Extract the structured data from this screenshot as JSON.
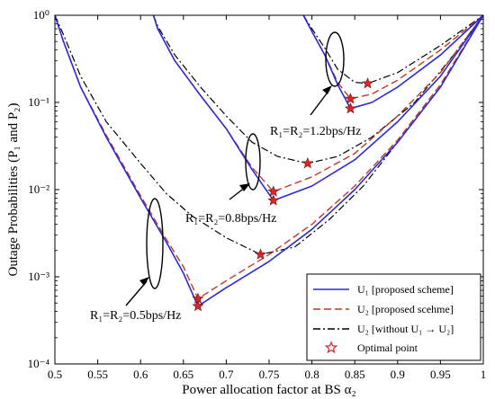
{
  "chart_data": {
    "type": "line",
    "xlabel": "Power allocation factor at BS α₂",
    "ylabel": "Outage Probabilities (P₁ and P₂)",
    "xlim": [
      0.5,
      1.0
    ],
    "ylim": [
      0.0001,
      1
    ],
    "yscale": "log",
    "xticks": [
      0.5,
      0.55,
      0.6,
      0.65,
      0.7,
      0.75,
      0.8,
      0.85,
      0.9,
      0.95,
      1.0
    ],
    "xtick_labels": [
      "0.5",
      "0.55",
      "0.6",
      "0.65",
      "0.7",
      "0.75",
      "0.8",
      "0.85",
      "0.9",
      "0.95",
      "1"
    ],
    "yticks": [
      0.0001,
      0.001,
      0.01,
      0.1,
      1
    ],
    "ytick_labels": [
      "10⁻⁴",
      "10⁻³",
      "10⁻²",
      "10⁻¹",
      "10⁰"
    ],
    "legend_position": "bottom-right",
    "legend": [
      {
        "label": "U₁ [proposed scheme]",
        "color": "#2b2bd6",
        "style": "solid"
      },
      {
        "label": "U₂ [proposed scehme]",
        "color": "#c0392b",
        "style": "dashed"
      },
      {
        "label": "U₂ [without U₁ → U₂]",
        "color": "#000000",
        "style": "dashdot"
      },
      {
        "label": "Optimal point",
        "color": "#d62728",
        "style": "star"
      }
    ],
    "annotations": [
      {
        "text": "R₁=R₂=0.5bps/Hz"
      },
      {
        "text": "R₁=R₂=0.8bps/Hz"
      },
      {
        "text": "R₁=R₂=1.2bps/Hz"
      }
    ],
    "groups": [
      {
        "rate": "0.5",
        "u1": [
          [
            0.5,
            1.0
          ],
          [
            0.51,
            0.5
          ],
          [
            0.53,
            0.15
          ],
          [
            0.56,
            0.04
          ],
          [
            0.6,
            0.008
          ],
          [
            0.63,
            0.0025
          ],
          [
            0.65,
            0.0011
          ],
          [
            0.667,
            0.00046
          ],
          [
            0.7,
            0.00075
          ],
          [
            0.75,
            0.0015
          ],
          [
            0.8,
            0.0035
          ],
          [
            0.85,
            0.01
          ],
          [
            0.9,
            0.035
          ],
          [
            0.95,
            0.15
          ],
          [
            1.0,
            1.0
          ]
        ],
        "u2": [
          [
            0.5,
            1.0
          ],
          [
            0.51,
            0.5
          ],
          [
            0.53,
            0.15
          ],
          [
            0.56,
            0.042
          ],
          [
            0.6,
            0.0085
          ],
          [
            0.63,
            0.0027
          ],
          [
            0.65,
            0.0013
          ],
          [
            0.667,
            0.00056
          ],
          [
            0.7,
            0.0009
          ],
          [
            0.75,
            0.0018
          ],
          [
            0.8,
            0.004
          ],
          [
            0.85,
            0.011
          ],
          [
            0.9,
            0.037
          ],
          [
            0.95,
            0.16
          ],
          [
            1.0,
            1.0
          ]
        ],
        "u2_without": [
          [
            0.5,
            1.0
          ],
          [
            0.51,
            0.6
          ],
          [
            0.53,
            0.2
          ],
          [
            0.56,
            0.06
          ],
          [
            0.6,
            0.02
          ],
          [
            0.63,
            0.009
          ],
          [
            0.66,
            0.005
          ],
          [
            0.7,
            0.0028
          ],
          [
            0.74,
            0.0018
          ],
          [
            0.78,
            0.0022
          ],
          [
            0.82,
            0.0045
          ],
          [
            0.86,
            0.011
          ],
          [
            0.9,
            0.035
          ],
          [
            0.95,
            0.15
          ],
          [
            1.0,
            1.0
          ]
        ],
        "optimal": [
          [
            0.667,
            0.00046
          ],
          [
            0.667,
            0.00056
          ],
          [
            0.74,
            0.0018
          ]
        ]
      },
      {
        "rate": "0.8",
        "u1": [
          [
            0.615,
            1.0
          ],
          [
            0.62,
            0.7
          ],
          [
            0.64,
            0.3
          ],
          [
            0.67,
            0.12
          ],
          [
            0.7,
            0.05
          ],
          [
            0.73,
            0.017
          ],
          [
            0.755,
            0.0075
          ],
          [
            0.8,
            0.011
          ],
          [
            0.85,
            0.022
          ],
          [
            0.9,
            0.06
          ],
          [
            0.95,
            0.2
          ],
          [
            1.0,
            1.0
          ]
        ],
        "u2": [
          [
            0.615,
            1.0
          ],
          [
            0.62,
            0.7
          ],
          [
            0.64,
            0.3
          ],
          [
            0.67,
            0.12
          ],
          [
            0.7,
            0.05
          ],
          [
            0.73,
            0.018
          ],
          [
            0.755,
            0.0095
          ],
          [
            0.8,
            0.014
          ],
          [
            0.85,
            0.026
          ],
          [
            0.9,
            0.07
          ],
          [
            0.95,
            0.22
          ],
          [
            1.0,
            1.0
          ]
        ],
        "u2_without": [
          [
            0.615,
            1.0
          ],
          [
            0.62,
            0.75
          ],
          [
            0.64,
            0.35
          ],
          [
            0.67,
            0.15
          ],
          [
            0.7,
            0.07
          ],
          [
            0.73,
            0.035
          ],
          [
            0.76,
            0.024
          ],
          [
            0.795,
            0.02
          ],
          [
            0.83,
            0.024
          ],
          [
            0.87,
            0.04
          ],
          [
            0.92,
            0.1
          ],
          [
            0.96,
            0.3
          ],
          [
            1.0,
            1.0
          ]
        ],
        "optimal": [
          [
            0.755,
            0.0075
          ],
          [
            0.755,
            0.0095
          ],
          [
            0.795,
            0.02
          ]
        ]
      },
      {
        "rate": "1.2",
        "u1": [
          [
            0.79,
            1.0
          ],
          [
            0.8,
            0.65
          ],
          [
            0.815,
            0.35
          ],
          [
            0.83,
            0.16
          ],
          [
            0.845,
            0.085
          ],
          [
            0.87,
            0.1
          ],
          [
            0.9,
            0.15
          ],
          [
            0.95,
            0.35
          ],
          [
            1.0,
            1.0
          ]
        ],
        "u2": [
          [
            0.79,
            1.0
          ],
          [
            0.8,
            0.65
          ],
          [
            0.815,
            0.35
          ],
          [
            0.83,
            0.17
          ],
          [
            0.845,
            0.11
          ],
          [
            0.87,
            0.125
          ],
          [
            0.9,
            0.18
          ],
          [
            0.95,
            0.4
          ],
          [
            1.0,
            1.0
          ]
        ],
        "u2_without": [
          [
            0.79,
            1.0
          ],
          [
            0.8,
            0.7
          ],
          [
            0.815,
            0.42
          ],
          [
            0.83,
            0.24
          ],
          [
            0.85,
            0.17
          ],
          [
            0.865,
            0.165
          ],
          [
            0.9,
            0.22
          ],
          [
            0.95,
            0.45
          ],
          [
            1.0,
            1.0
          ]
        ],
        "optimal": [
          [
            0.845,
            0.085
          ],
          [
            0.845,
            0.11
          ],
          [
            0.865,
            0.165
          ]
        ]
      }
    ]
  }
}
